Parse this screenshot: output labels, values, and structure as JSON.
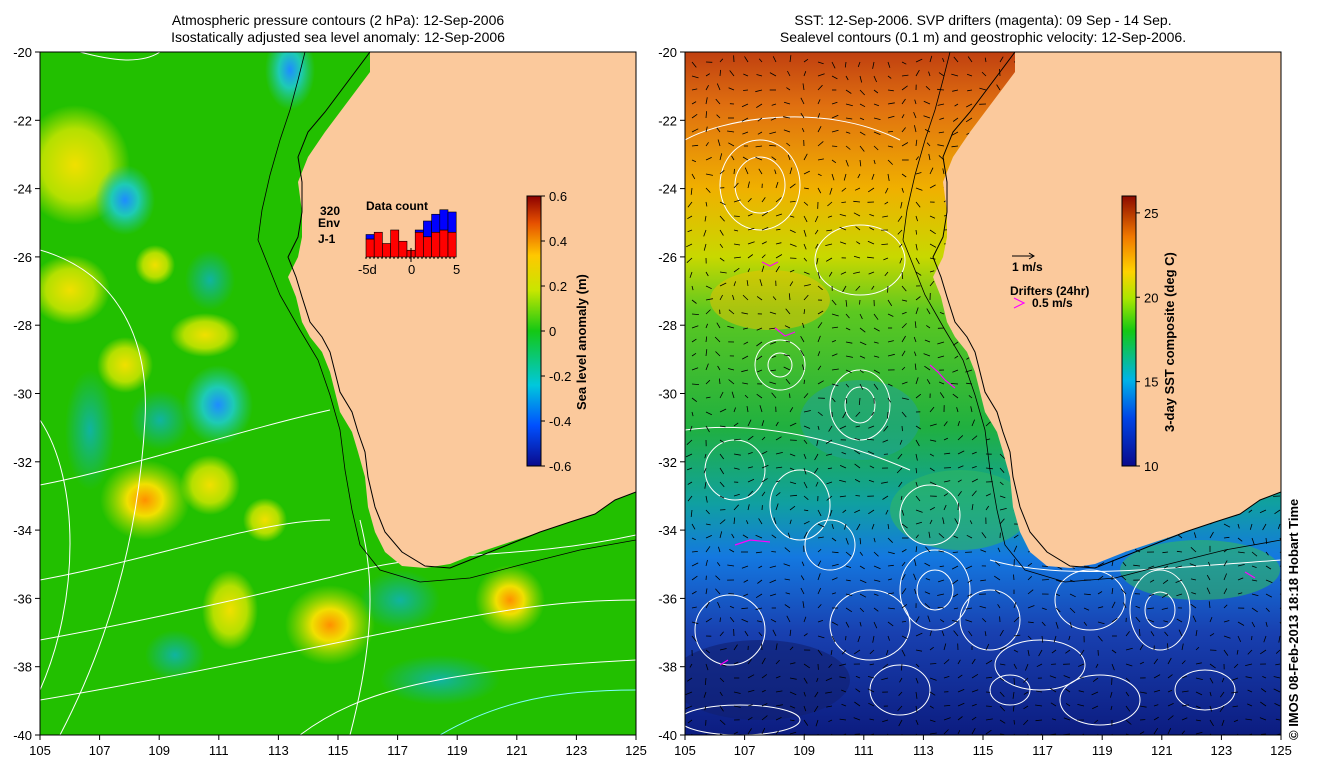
{
  "left_panel": {
    "title_line1": "Atmospheric pressure contours (2 hPa): 12-Sep-2006",
    "title_line2": "Isostatically adjusted sea level anomaly: 12-Sep-2006",
    "x_ticks": [
      "105",
      "107",
      "109",
      "111",
      "113",
      "115",
      "117",
      "119",
      "121",
      "123",
      "125"
    ],
    "y_ticks": [
      "-20",
      "-22",
      "-24",
      "-26",
      "-28",
      "-30",
      "-32",
      "-34",
      "-36",
      "-38",
      "-40"
    ],
    "colorbar": {
      "label": "Sea level anomaly (m)",
      "ticks": [
        "0.6",
        "0.4",
        "0.2",
        "0",
        "-0.2",
        "-0.4",
        "-0.6"
      ],
      "min": -0.6,
      "max": 0.6
    },
    "data_count": {
      "title": "Data count",
      "number_label": "320",
      "env_label": "Env",
      "j1_label": "J-1",
      "x_tick_labels": [
        "-5d",
        "0",
        "5"
      ],
      "j1_counts": [
        0.4,
        0.55,
        0.3,
        0.6,
        0.35,
        0.15,
        0.55,
        0.45,
        0.55,
        0.6,
        0.55
      ],
      "env_counts": [
        0.1,
        0,
        0,
        0,
        0,
        0,
        0.05,
        0.35,
        0.4,
        0.45,
        0.45
      ],
      "env_color": "#0000ff",
      "j1_color": "#ff0000"
    }
  },
  "right_panel": {
    "title_line1": "SST: 12-Sep-2006. SVP drifters (magenta): 09 Sep - 14 Sep.",
    "title_line2": "Sealevel contours (0.1 m) and geostrophic velocity: 12-Sep-2006.",
    "x_ticks": [
      "105",
      "107",
      "109",
      "111",
      "113",
      "115",
      "117",
      "119",
      "121",
      "123",
      "125"
    ],
    "y_ticks": [
      "-20",
      "-22",
      "-24",
      "-26",
      "-28",
      "-30",
      "-32",
      "-34",
      "-36",
      "-38",
      "-40"
    ],
    "colorbar": {
      "label": "3-day SST composite (deg C)",
      "ticks": [
        "25",
        "20",
        "15",
        "10"
      ],
      "min": 10,
      "max": 26
    },
    "velocity_legend_label": "1 m/s",
    "drifters_legend_title": "Drifters (24hr)",
    "drifters_legend_label": "0.5 m/s",
    "drifter_color": "#ff00ff"
  },
  "credit": "© IMOS 08-Feb-2013 18:18 Hobart Time",
  "colors": {
    "land": "#fbc99c",
    "ocean_green": "#22c000",
    "coast": "#000000"
  }
}
